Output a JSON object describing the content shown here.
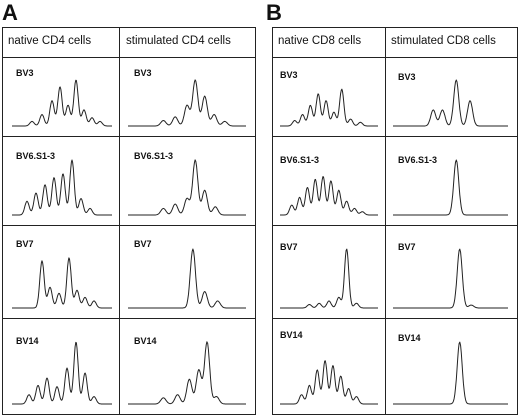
{
  "panels": [
    {
      "letter": "A",
      "columns": [
        "native CD4 cells",
        "stimulated CD4 cells"
      ],
      "rows": [
        {
          "label_left": "BV3",
          "label_right": "BV3",
          "left_peaks": [
            [
              0.2,
              0.1
            ],
            [
              0.3,
              0.25
            ],
            [
              0.4,
              0.55
            ],
            [
              0.48,
              0.85
            ],
            [
              0.56,
              0.45
            ],
            [
              0.64,
              1.0
            ],
            [
              0.72,
              0.35
            ],
            [
              0.8,
              0.18
            ],
            [
              0.88,
              0.1
            ]
          ],
          "right_peaks": [
            [
              0.3,
              0.12
            ],
            [
              0.4,
              0.2
            ],
            [
              0.5,
              0.45
            ],
            [
              0.57,
              1.0
            ],
            [
              0.65,
              0.65
            ],
            [
              0.73,
              0.25
            ],
            [
              0.82,
              0.1
            ]
          ]
        },
        {
          "label_left": "BV6.S1-3",
          "label_right": "BV6.S1-3",
          "left_peaks": [
            [
              0.15,
              0.25
            ],
            [
              0.24,
              0.4
            ],
            [
              0.33,
              0.55
            ],
            [
              0.42,
              0.68
            ],
            [
              0.51,
              0.75
            ],
            [
              0.6,
              1.0
            ],
            [
              0.69,
              0.3
            ],
            [
              0.78,
              0.12
            ]
          ],
          "right_peaks": [
            [
              0.3,
              0.12
            ],
            [
              0.4,
              0.2
            ],
            [
              0.5,
              0.3
            ],
            [
              0.57,
              1.0
            ],
            [
              0.65,
              0.45
            ],
            [
              0.74,
              0.15
            ]
          ]
        },
        {
          "label_left": "BV7",
          "label_right": "BV7",
          "left_peaks": [
            [
              0.3,
              0.8
            ],
            [
              0.38,
              0.35
            ],
            [
              0.47,
              0.25
            ],
            [
              0.57,
              0.85
            ],
            [
              0.65,
              0.3
            ],
            [
              0.73,
              0.18
            ],
            [
              0.82,
              0.12
            ]
          ],
          "right_peaks": [
            [
              0.55,
              1.0
            ],
            [
              0.65,
              0.28
            ],
            [
              0.76,
              0.12
            ]
          ]
        },
        {
          "label_left": "BV14",
          "label_right": "BV14",
          "left_peaks": [
            [
              0.17,
              0.15
            ],
            [
              0.26,
              0.3
            ],
            [
              0.35,
              0.42
            ],
            [
              0.45,
              0.28
            ],
            [
              0.55,
              0.58
            ],
            [
              0.64,
              1.0
            ],
            [
              0.73,
              0.5
            ],
            [
              0.82,
              0.12
            ]
          ],
          "right_peaks": [
            [
              0.3,
              0.1
            ],
            [
              0.42,
              0.15
            ],
            [
              0.52,
              0.4
            ],
            [
              0.6,
              0.55
            ],
            [
              0.67,
              1.0
            ],
            [
              0.75,
              0.12
            ]
          ]
        }
      ]
    },
    {
      "letter": "B",
      "columns": [
        "native CD8 cells",
        "stimulated CD8 cells"
      ],
      "rows": [
        {
          "label_left": "BV3",
          "label_right": "BV3",
          "left_peaks": [
            [
              0.15,
              0.12
            ],
            [
              0.23,
              0.25
            ],
            [
              0.31,
              0.45
            ],
            [
              0.39,
              0.7
            ],
            [
              0.47,
              0.55
            ],
            [
              0.55,
              0.3
            ],
            [
              0.63,
              0.8
            ],
            [
              0.72,
              0.15
            ],
            [
              0.82,
              0.08
            ]
          ],
          "right_peaks": [
            [
              0.35,
              0.35
            ],
            [
              0.43,
              0.35
            ],
            [
              0.55,
              1.0
            ],
            [
              0.67,
              0.55
            ]
          ]
        },
        {
          "label_left": "BV6.S1-3",
          "label_right": "BV6.S1-3",
          "left_peaks": [
            [
              0.12,
              0.18
            ],
            [
              0.2,
              0.32
            ],
            [
              0.28,
              0.5
            ],
            [
              0.36,
              0.65
            ],
            [
              0.44,
              0.7
            ],
            [
              0.52,
              0.62
            ],
            [
              0.6,
              0.45
            ],
            [
              0.68,
              0.25
            ],
            [
              0.76,
              0.12
            ],
            [
              0.84,
              0.06
            ]
          ],
          "right_peaks": [
            [
              0.55,
              1.0
            ]
          ]
        },
        {
          "label_left": "BV7",
          "label_right": "BV7",
          "left_peaks": [
            [
              0.3,
              0.06
            ],
            [
              0.4,
              0.08
            ],
            [
              0.5,
              0.12
            ],
            [
              0.6,
              0.18
            ],
            [
              0.68,
              1.0
            ],
            [
              0.78,
              0.08
            ]
          ],
          "right_peaks": [
            [
              0.58,
              1.0
            ],
            [
              0.68,
              0.05
            ]
          ]
        },
        {
          "label_left": "BV14",
          "label_right": "BV14",
          "left_peaks": [
            [
              0.22,
              0.15
            ],
            [
              0.3,
              0.3
            ],
            [
              0.38,
              0.55
            ],
            [
              0.46,
              0.7
            ],
            [
              0.54,
              0.62
            ],
            [
              0.62,
              0.45
            ],
            [
              0.7,
              0.25
            ],
            [
              0.78,
              0.12
            ]
          ],
          "right_peaks": [
            [
              0.58,
              1.0
            ]
          ]
        }
      ]
    }
  ]
}
